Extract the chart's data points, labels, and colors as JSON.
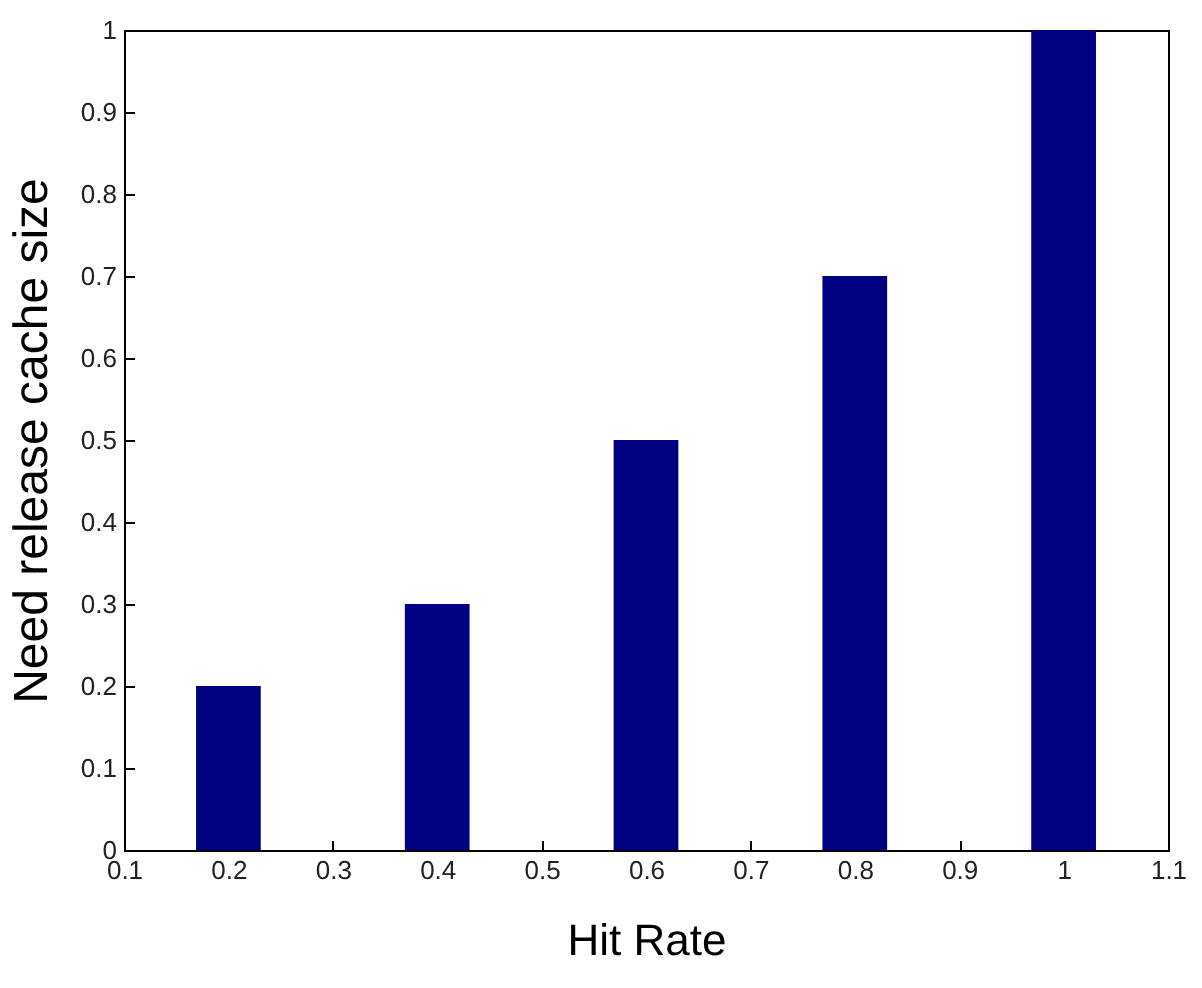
{
  "chart_data": {
    "type": "bar",
    "xlabel": "Hit Rate",
    "ylabel": "Need release cache size",
    "x": [
      0.2,
      0.4,
      0.6,
      0.8,
      1.0
    ],
    "values": [
      0.2,
      0.3,
      0.5,
      0.7,
      1.0
    ],
    "color": "#000080",
    "xlim": [
      0.1,
      1.1
    ],
    "xticks": [
      0.1,
      0.2,
      0.3,
      0.4,
      0.5,
      0.6,
      0.7,
      0.8,
      0.9,
      1,
      1.1
    ],
    "ylim": [
      0,
      1
    ],
    "yticks": [
      0,
      0.1,
      0.2,
      0.3,
      0.4,
      0.5,
      0.6,
      0.7,
      0.8,
      0.9,
      1
    ],
    "grid": false
  }
}
